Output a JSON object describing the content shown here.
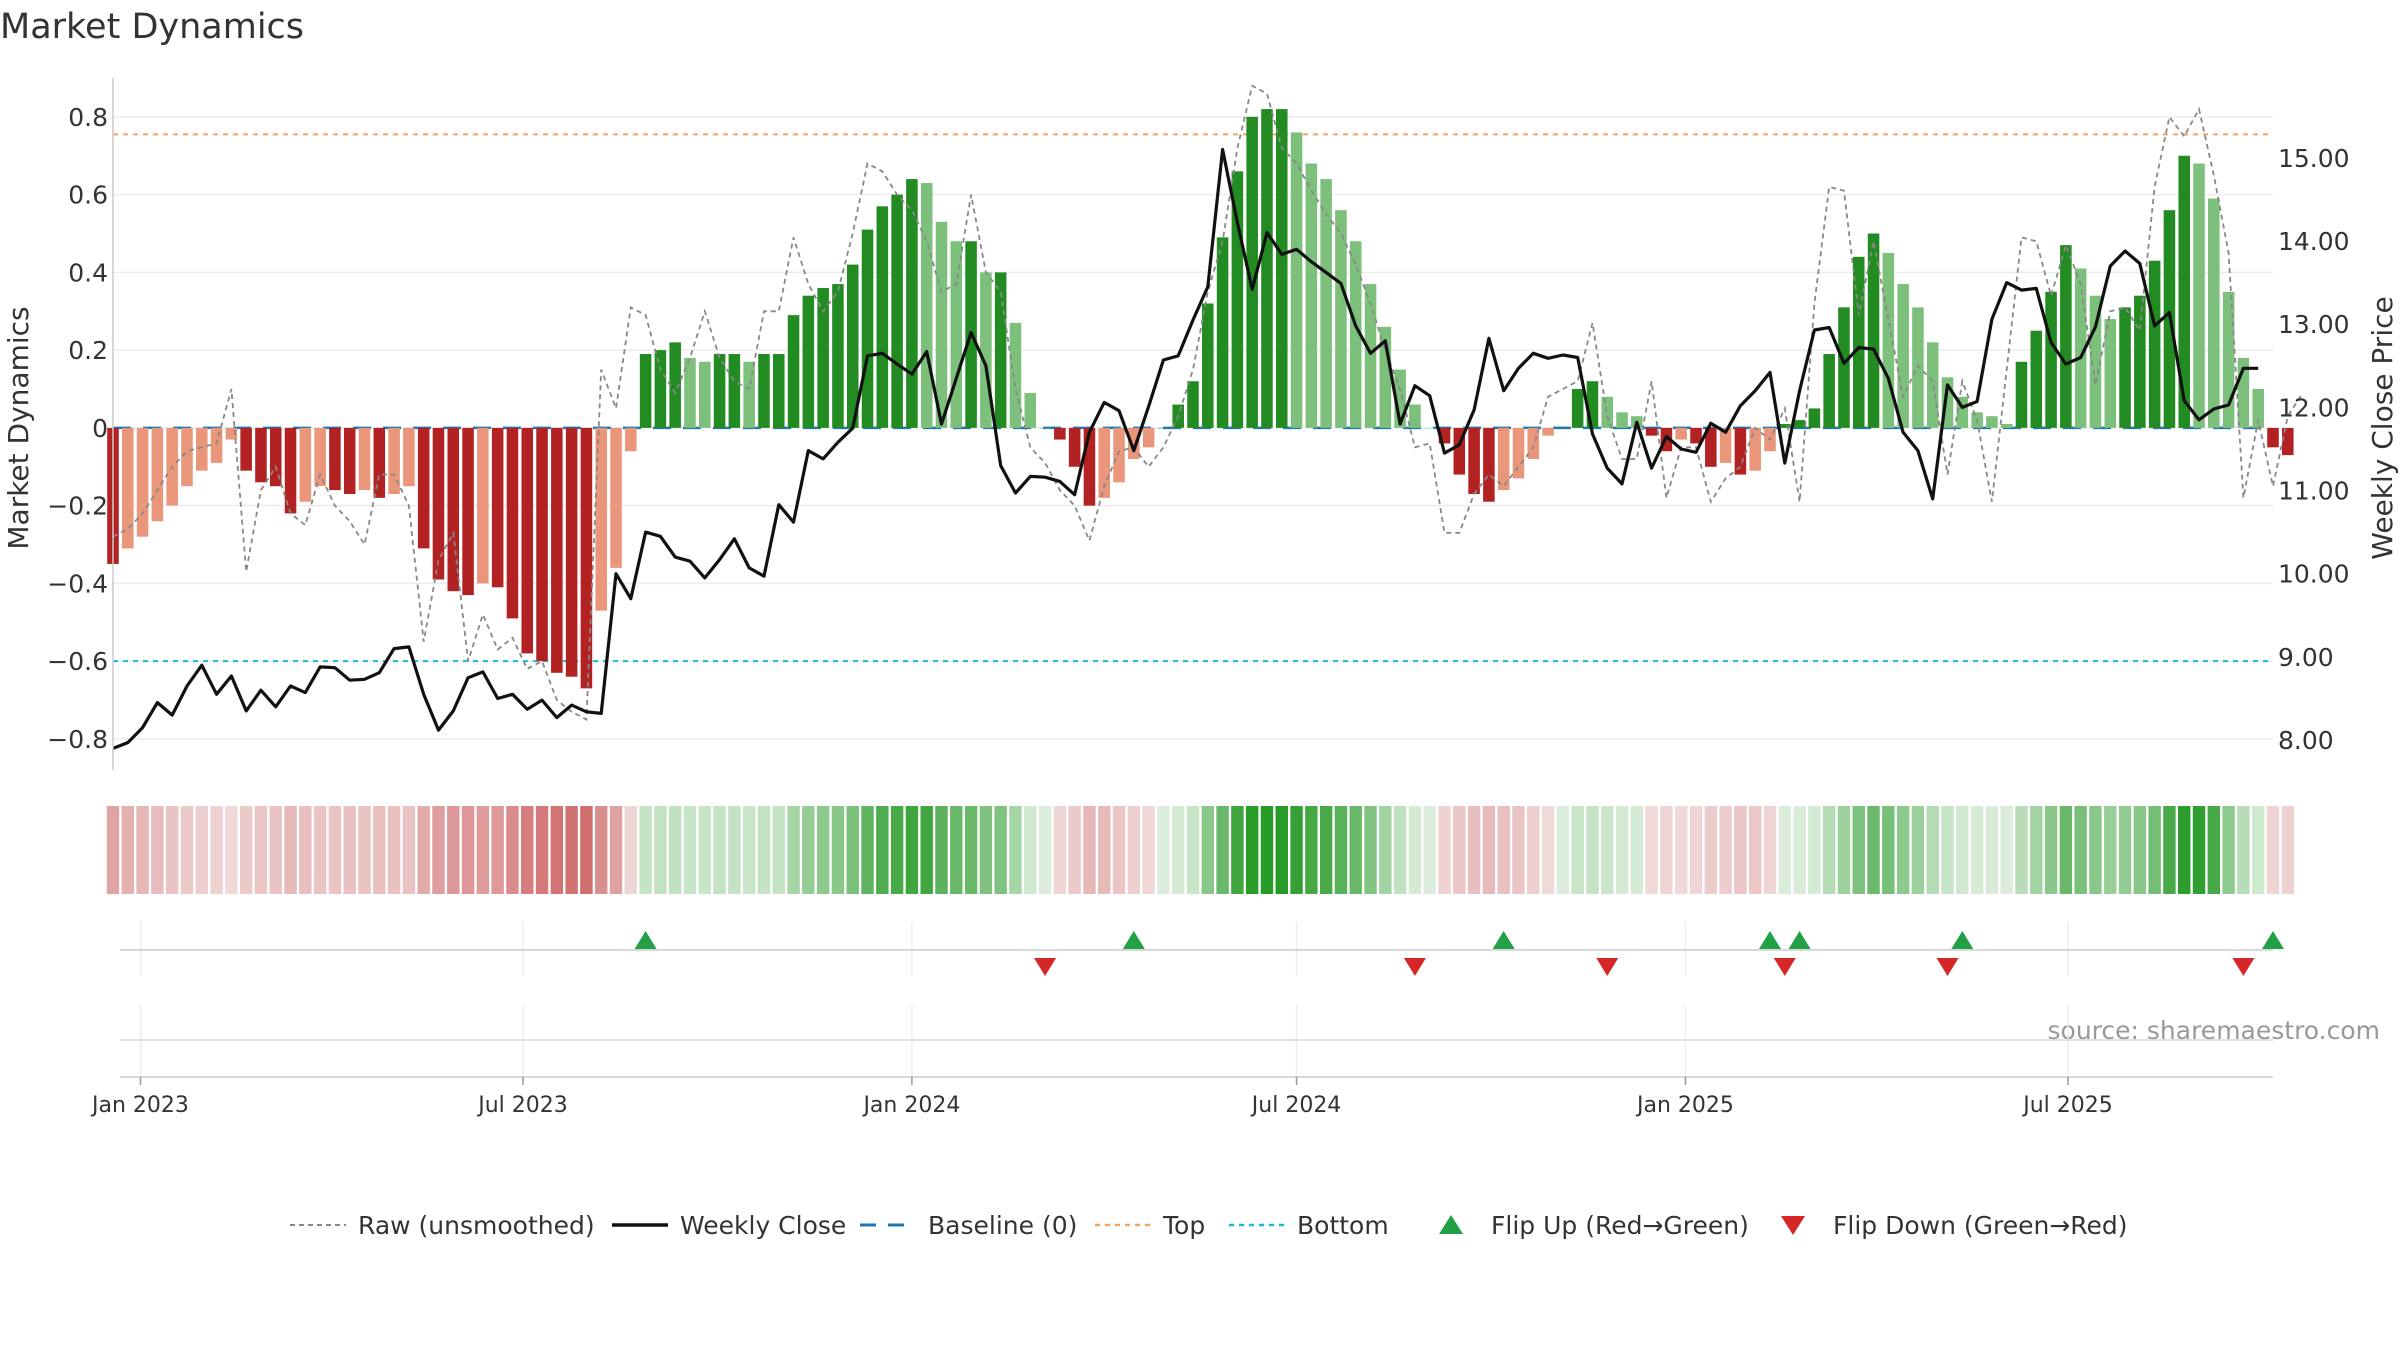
{
  "colors": {
    "strong_green": "#228b22",
    "light_green": "#7cc07c",
    "strong_red": "#b22222",
    "light_red": "#e9967a",
    "close_line": "#111111",
    "raw_line": "#888888",
    "baseline": "#1f77b4",
    "top_line": "#f4a460",
    "bottom_line": "#17becf",
    "flip_up": "#22a045",
    "flip_down": "#d62728"
  },
  "chart_data": {
    "type": "bar",
    "title": "Market Dynamics",
    "ylabel_left": "Market Dynamics",
    "ylabel_right": "Weekly Close Price",
    "source": "source: sharemaestro.com",
    "y_left_lim": [
      -0.88,
      0.9
    ],
    "y_right_lim": [
      7.64,
      15.96
    ],
    "y_left_ticks": [
      0.8,
      0.6,
      0.4,
      0.2,
      0,
      -0.2,
      -0.4,
      -0.6,
      -0.8
    ],
    "y_left_tick_labels": [
      "0.8",
      "0.6",
      "0.4",
      "0.2",
      "0",
      "−0.2",
      "−0.4",
      "−0.6",
      "−0.8"
    ],
    "y_right_ticks": [
      15,
      14,
      13,
      12,
      11,
      10,
      9,
      8
    ],
    "y_right_tick_labels": [
      "15.00",
      "14.00",
      "13.00",
      "12.00",
      "11.00",
      "10.00",
      "9.00",
      "8.00"
    ],
    "x_range": [
      "2022-12-19",
      "2025-10-06"
    ],
    "x_ticks": [
      {
        "date": "2023-01-01",
        "label": "Jan 2023"
      },
      {
        "date": "2023-07-01",
        "label": "Jul 2023"
      },
      {
        "date": "2024-01-01",
        "label": "Jan 2024"
      },
      {
        "date": "2024-07-01",
        "label": "Jul 2024"
      },
      {
        "date": "2025-01-01",
        "label": "Jan 2025"
      },
      {
        "date": "2025-07-01",
        "label": "Jul 2025"
      }
    ],
    "x_start": "2022-12-19",
    "week_step_days": 7,
    "dynamics": [
      -0.35,
      -0.31,
      -0.28,
      -0.24,
      -0.2,
      -0.15,
      -0.11,
      -0.09,
      -0.03,
      -0.11,
      -0.14,
      -0.15,
      -0.22,
      -0.19,
      -0.15,
      -0.16,
      -0.17,
      -0.16,
      -0.18,
      -0.17,
      -0.15,
      -0.31,
      -0.39,
      -0.42,
      -0.43,
      -0.4,
      -0.41,
      -0.49,
      -0.58,
      -0.6,
      -0.63,
      -0.64,
      -0.67,
      -0.47,
      -0.36,
      -0.06,
      0.19,
      0.2,
      0.22,
      0.18,
      0.17,
      0.19,
      0.19,
      0.17,
      0.19,
      0.19,
      0.29,
      0.34,
      0.36,
      0.37,
      0.42,
      0.51,
      0.57,
      0.6,
      0.64,
      0.63,
      0.53,
      0.48,
      0.48,
      0.4,
      0.4,
      0.27,
      0.09,
      0,
      -0.03,
      -0.1,
      -0.2,
      -0.18,
      -0.14,
      -0.08,
      -0.05,
      0,
      0.06,
      0.12,
      0.32,
      0.49,
      0.66,
      0.8,
      0.82,
      0.82,
      0.76,
      0.68,
      0.64,
      0.56,
      0.48,
      0.37,
      0.26,
      0.15,
      0.06,
      0,
      -0.04,
      -0.12,
      -0.17,
      -0.19,
      -0.16,
      -0.13,
      -0.08,
      -0.02,
      0,
      0.1,
      0.12,
      0.08,
      0.04,
      0.03,
      -0.02,
      -0.06,
      -0.03,
      -0.04,
      -0.1,
      -0.09,
      -0.12,
      -0.11,
      -0.06,
      0.01,
      0.02,
      0.05,
      0.19,
      0.31,
      0.44,
      0.5,
      0.45,
      0.37,
      0.31,
      0.22,
      0.13,
      0.08,
      0.04,
      0.03,
      0.01,
      0.17,
      0.25,
      0.35,
      0.47,
      0.41,
      0.34,
      0.28,
      0.31,
      0.34,
      0.43,
      0.56,
      0.7,
      0.68,
      0.59,
      0.35,
      0.18,
      0.1,
      -0.05,
      -0.07
    ],
    "raw": [
      -0.28,
      -0.26,
      -0.22,
      -0.16,
      -0.1,
      -0.06,
      -0.05,
      -0.04,
      0.1,
      -0.37,
      -0.16,
      -0.1,
      -0.22,
      -0.25,
      -0.12,
      -0.2,
      -0.24,
      -0.3,
      -0.12,
      -0.12,
      -0.2,
      -0.55,
      -0.34,
      -0.27,
      -0.6,
      -0.48,
      -0.57,
      -0.54,
      -0.62,
      -0.6,
      -0.7,
      -0.73,
      -0.75,
      0.15,
      0.05,
      0.31,
      0.29,
      0.15,
      0.09,
      0.18,
      0.3,
      0.18,
      0.12,
      0.1,
      0.3,
      0.3,
      0.49,
      0.37,
      0.3,
      0.35,
      0.5,
      0.68,
      0.66,
      0.6,
      0.56,
      0.48,
      0.35,
      0.37,
      0.6,
      0.4,
      0.35,
      0.1,
      -0.05,
      -0.09,
      -0.16,
      -0.2,
      -0.29,
      -0.15,
      -0.06,
      -0.05,
      -0.1,
      -0.05,
      0.03,
      0.15,
      0.35,
      0.48,
      0.72,
      0.88,
      0.86,
      0.72,
      0.68,
      0.61,
      0.55,
      0.5,
      0.42,
      0.32,
      0.2,
      0.1,
      -0.05,
      -0.04,
      -0.27,
      -0.27,
      -0.17,
      -0.12,
      -0.15,
      -0.1,
      -0.05,
      0.08,
      0.1,
      0.12,
      0.27,
      0.03,
      -0.08,
      -0.08,
      0.12,
      -0.18,
      -0.05,
      -0.05,
      -0.19,
      -0.13,
      -0.1,
      0.0,
      -0.03,
      0.05,
      -0.19,
      0.32,
      0.62,
      0.61,
      0.29,
      0.48,
      0.28,
      0.08,
      0.16,
      0.12,
      -0.12,
      0.12,
      0.02,
      -0.19,
      0.15,
      0.49,
      0.48,
      0.34,
      0.47,
      0.37,
      0.11,
      0.3,
      0.31,
      0.25,
      0.62,
      0.8,
      0.75,
      0.82,
      0.65,
      0.45,
      -0.18,
      0.02,
      -0.15,
      0.03,
      0.09
    ],
    "close": [
      7.9,
      7.97,
      8.15,
      8.45,
      8.3,
      8.65,
      8.9,
      8.55,
      8.77,
      8.35,
      8.6,
      8.4,
      8.65,
      8.57,
      8.88,
      8.87,
      8.72,
      8.73,
      8.81,
      9.1,
      9.12,
      8.55,
      8.12,
      8.35,
      8.75,
      8.82,
      8.5,
      8.55,
      8.37,
      8.48,
      8.27,
      8.42,
      8.34,
      8.32,
      10.0,
      9.7,
      10.5,
      10.45,
      10.2,
      10.15,
      9.95,
      10.17,
      10.42,
      10.07,
      9.97,
      10.83,
      10.62,
      11.48,
      11.38,
      11.58,
      11.75,
      12.62,
      12.65,
      12.52,
      12.4,
      12.67,
      11.8,
      12.35,
      12.9,
      12.5,
      11.3,
      10.97,
      11.17,
      11.16,
      11.11,
      10.95,
      11.7,
      12.06,
      11.96,
      11.48,
      12.01,
      12.57,
      12.62,
      13.05,
      13.45,
      15.1,
      14.22,
      13.42,
      14.1,
      13.84,
      13.9,
      13.75,
      13.62,
      13.49,
      12.98,
      12.65,
      12.8,
      11.8,
      12.26,
      12.14,
      11.45,
      11.55,
      11.97,
      12.83,
      12.2,
      12.47,
      12.65,
      12.59,
      12.63,
      12.6,
      11.68,
      11.27,
      11.08,
      11.82,
      11.27,
      11.65,
      11.5,
      11.46,
      11.81,
      11.7,
      12.02,
      12.2,
      12.42,
      11.33,
      12.2,
      12.93,
      12.96,
      12.53,
      12.72,
      12.7,
      12.35,
      11.7,
      11.48,
      10.9,
      12.27,
      12.0,
      12.07,
      13.06,
      13.5,
      13.41,
      13.43,
      12.78,
      12.52,
      12.6,
      12.97,
      13.7,
      13.88,
      13.73,
      12.98,
      13.14,
      12.08,
      11.85,
      11.98,
      12.03,
      12.47,
      12.47
    ],
    "band_colors": [
      "#e1a4a4",
      "#e4b0b0",
      "#e6b7b7",
      "#e8bcbc",
      "#eac4c4",
      "#ecc9c9",
      "#edcece",
      "#eed1d1",
      "#f0d9d9",
      "#eccaca",
      "#ebc5c5",
      "#eac4c4",
      "#e7b9b9",
      "#e9bfbf",
      "#eac4c4",
      "#eac3c3",
      "#e9c1c1",
      "#eac3c3",
      "#e8bebe",
      "#e9c1c1",
      "#eac4c4",
      "#e3aaaa",
      "#df9d9d",
      "#dd9898",
      "#dd9797",
      "#df9c9c",
      "#de9a9a",
      "#da8c8c",
      "#d67d7d",
      "#d47a7a",
      "#d37474",
      "#d27373",
      "#d06e6e",
      "#db9090",
      "#e0a1a1",
      "#eed6d6",
      "#c4e3c4",
      "#c2e2c2",
      "#bfe1bf",
      "#c6e4c6",
      "#c8e5c8",
      "#c4e3c4",
      "#c4e3c4",
      "#c8e5c8",
      "#c4e3c4",
      "#c4e3c4",
      "#a6d5a6",
      "#95cd95",
      "#8ec98e",
      "#8ac88a",
      "#7bc17b",
      "#60b460",
      "#4fad4f",
      "#49aa49",
      "#3fa63f",
      "#41a641",
      "#5cb25c",
      "#6ab96a",
      "#6ab96a",
      "#80c380",
      "#80c380",
      "#a6d5a6",
      "#cfe8cf",
      "#dceddc",
      "#efd6d6",
      "#ebcaca",
      "#e6b7b7",
      "#e7baba",
      "#ebc5c5",
      "#eecfcf",
      "#f0d6d6",
      "#dceddc",
      "#d4ead4",
      "#c8e5c8",
      "#8ac88a",
      "#6ab96a",
      "#3fa63f",
      "#2a9c2a",
      "#279b27",
      "#279b27",
      "#389f38",
      "#45a845",
      "#4aaa4a",
      "#59b159",
      "#6ab96a",
      "#82c482",
      "#a2d3a2",
      "#bfe1bf",
      "#d4ead4",
      "#dceddc",
      "#efd3d3",
      "#eac6c6",
      "#e8bdbd",
      "#e7b9b9",
      "#e9bfbf",
      "#ebc5c5",
      "#eecfcf",
      "#f0d9d9",
      "#dceddc",
      "#c8e5c8",
      "#c4e3c4",
      "#cce6cc",
      "#d4ead4",
      "#d6ebd6",
      "#f0d9d9",
      "#efd4d4",
      "#f0d8d8",
      "#efd5d5",
      "#eccbcb",
      "#eccccc",
      "#ebc6c6",
      "#ecc7c7",
      "#efd4d4",
      "#dbecdb",
      "#d9ebd9",
      "#d4ead4",
      "#b6dcb6",
      "#9cd09c",
      "#7cc27c",
      "#6cb96c",
      "#78bf78",
      "#8ec98e",
      "#9cd09c",
      "#b4dbb4",
      "#c6e4c6",
      "#cfe8cf",
      "#d6ebd6",
      "#d8ebd8",
      "#dbecdb",
      "#b7dcb7",
      "#a3d3a3",
      "#8ac88a",
      "#6ab96a",
      "#7ac07a",
      "#8ac88a",
      "#98ce98",
      "#92cc92",
      "#8ac88a",
      "#74bd74",
      "#4aaa4a",
      "#2d9d2d",
      "#309e30",
      "#46a846",
      "#8ec98e",
      "#b7dcb7",
      "#ccebcc",
      "#efd4d4",
      "#eed1d1"
    ],
    "flips_up": [
      "2023-08-28",
      "2024-04-15",
      "2024-10-07",
      "2025-02-10",
      "2025-02-24",
      "2025-05-12",
      "2025-10-06"
    ],
    "flips_down": [
      "2024-03-04",
      "2024-08-26",
      "2024-11-25",
      "2025-02-17",
      "2025-05-05",
      "2025-09-22"
    ],
    "top": 0.755,
    "bottom": -0.6,
    "baseline": 0,
    "legend": [
      {
        "label": "Raw (unsmoothed)",
        "kind": "dashed-gray"
      },
      {
        "label": "Weekly Close",
        "kind": "solid-black"
      },
      {
        "label": "Baseline (0)",
        "kind": "dashed-blue"
      },
      {
        "label": "Top",
        "kind": "dotted-orange"
      },
      {
        "label": "Bottom",
        "kind": "dotted-cyan"
      },
      {
        "label": "Flip Up (Red→Green)",
        "kind": "triangle-up"
      },
      {
        "label": "Flip Down (Green→Red)",
        "kind": "triangle-down"
      }
    ],
    "legend_position": "bottom-center",
    "grid": true
  }
}
